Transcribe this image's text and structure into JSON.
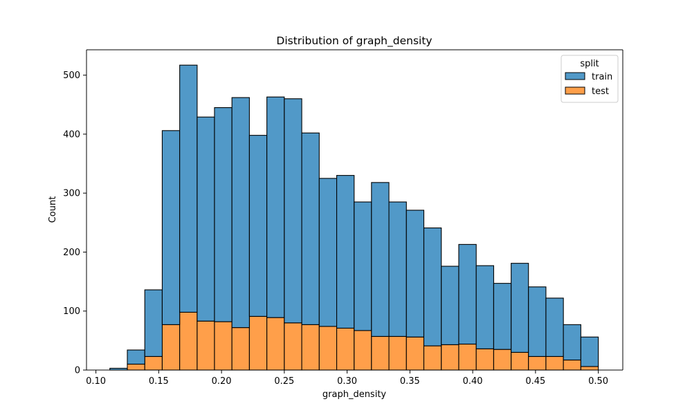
{
  "chart_data": {
    "type": "bar",
    "stacked": true,
    "title": "Distribution of graph_density",
    "xlabel": "graph_density",
    "ylabel": "Count",
    "xlim": [
      0.0925,
      0.5195
    ],
    "ylim": [
      0,
      543
    ],
    "x_ticks": [
      0.1,
      0.15,
      0.2,
      0.25,
      0.3,
      0.35,
      0.4,
      0.45,
      0.5
    ],
    "x_tick_labels": [
      "0.10",
      "0.15",
      "0.20",
      "0.25",
      "0.30",
      "0.35",
      "0.40",
      "0.45",
      "0.50"
    ],
    "y_ticks": [
      0,
      100,
      200,
      300,
      400,
      500
    ],
    "y_tick_labels": [
      "0",
      "100",
      "200",
      "300",
      "400",
      "500"
    ],
    "grid": false,
    "legend": {
      "title": "split",
      "position": "top-right"
    },
    "bin_edges": [
      0.1111,
      0.125,
      0.1389,
      0.1528,
      0.1667,
      0.1806,
      0.1944,
      0.2083,
      0.2222,
      0.2361,
      0.25,
      0.2639,
      0.2778,
      0.2917,
      0.3056,
      0.3194,
      0.3333,
      0.3472,
      0.3611,
      0.375,
      0.3889,
      0.4028,
      0.4167,
      0.4306,
      0.4444,
      0.4583,
      0.4722,
      0.4861,
      0.5
    ],
    "series": [
      {
        "name": "test",
        "color": "#ff9f4a",
        "values": [
          0,
          10,
          23,
          77,
          98,
          83,
          82,
          72,
          91,
          89,
          80,
          77,
          74,
          71,
          67,
          57,
          57,
          56,
          41,
          43,
          44,
          36,
          35,
          30,
          23,
          23,
          17,
          6
        ]
      },
      {
        "name": "train",
        "color": "#5199c8",
        "values": [
          3,
          24,
          113,
          329,
          419,
          346,
          363,
          390,
          307,
          374,
          380,
          325,
          251,
          259,
          218,
          261,
          228,
          215,
          200,
          133,
          169,
          141,
          112,
          151,
          118,
          99,
          60,
          50
        ]
      }
    ]
  }
}
